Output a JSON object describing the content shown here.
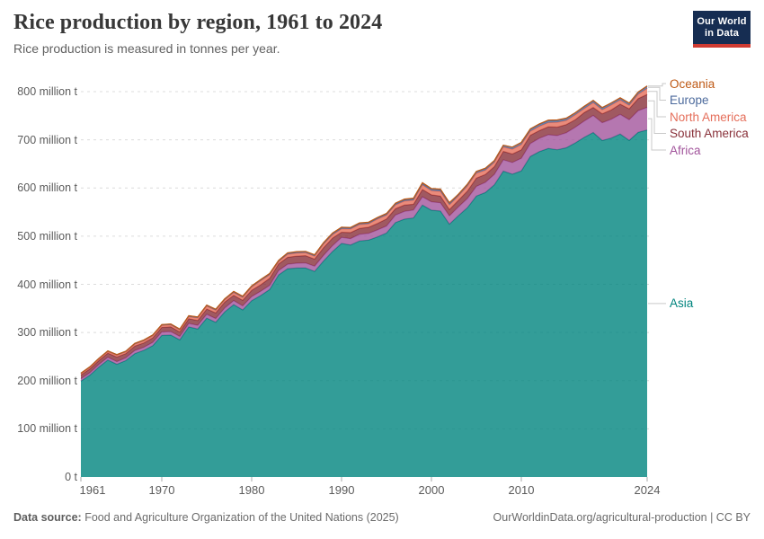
{
  "header": {
    "title": "Rice production by region, 1961 to 2024",
    "subtitle": "Rice production is measured in tonnes per year.",
    "logo": {
      "line1": "Our World",
      "line2": "in Data",
      "navy": "#162d52",
      "red": "#cf3b32"
    }
  },
  "footer": {
    "source_label": "Data source:",
    "source_text": " Food and Agriculture Organization of the United Nations (2025)",
    "link_text": "OurWorldinData.org/agricultural-production | CC BY"
  },
  "colors": {
    "gridline": "#dcdcdc",
    "tick": "#a8a8a8",
    "connector": "#c9c9c9",
    "axis_text": "#5b5b5b",
    "fill_opacity": 0.8
  },
  "chart_data": {
    "type": "area",
    "stacked": true,
    "title": "Rice production by region, 1961 to 2024",
    "unit": "million tonnes per year",
    "xlabel": "",
    "ylabel": "Rice production",
    "ylim": [
      0,
      800
    ],
    "grid": "dashed-horizontal",
    "legend_position": "right-edge-labels",
    "x": [
      1961,
      1962,
      1963,
      1964,
      1965,
      1966,
      1967,
      1968,
      1969,
      1970,
      1971,
      1972,
      1973,
      1974,
      1975,
      1976,
      1977,
      1978,
      1979,
      1980,
      1981,
      1982,
      1983,
      1984,
      1985,
      1986,
      1987,
      1988,
      1989,
      1990,
      1991,
      1992,
      1993,
      1994,
      1995,
      1996,
      1997,
      1998,
      1999,
      2000,
      2001,
      2002,
      2003,
      2004,
      2005,
      2006,
      2007,
      2008,
      2009,
      2010,
      2011,
      2012,
      2013,
      2014,
      2015,
      2016,
      2017,
      2018,
      2019,
      2020,
      2021,
      2022,
      2023,
      2024
    ],
    "series": [
      {
        "name": "Asia",
        "color": "#00847E",
        "values": [
          199.2,
          211.4,
          228.3,
          242.9,
          234.1,
          241.7,
          256.3,
          262.9,
          272.6,
          293.9,
          294.6,
          284.7,
          311.6,
          307.3,
          329.9,
          321.1,
          342.8,
          357.9,
          346.8,
          366.0,
          376.7,
          389.1,
          419.6,
          432.4,
          433.7,
          433.9,
          426.9,
          448.5,
          468.3,
          484.9,
          481.7,
          490.0,
          491.7,
          498.5,
          506.4,
          528.3,
          535.3,
          537.9,
          564.4,
          553.8,
          552.2,
          524.7,
          542.5,
          559.0,
          583.3,
          590.5,
          606.6,
          635.0,
          628.7,
          635.6,
          665.4,
          675.5,
          682.0,
          679.4,
          683.5,
          693.6,
          705.1,
          715.1,
          698.5,
          703.5,
          711.9,
          698.8,
          715.5,
          720.3
        ]
      },
      {
        "name": "Africa",
        "color": "#A2559C",
        "values": [
          4.9,
          5.1,
          5.3,
          5.6,
          5.4,
          5.7,
          6.2,
          6.4,
          6.9,
          7.2,
          7.4,
          7.2,
          7.3,
          7.6,
          7.9,
          7.8,
          8.0,
          8.3,
          8.4,
          8.6,
          8.9,
          8.7,
          9.1,
          9.4,
          10.1,
          10.4,
          10.8,
          11.7,
          12.1,
          12.5,
          13.2,
          13.9,
          14.1,
          14.5,
          14.6,
          15.5,
          16.2,
          16.4,
          17.3,
          17.4,
          17.2,
          17.5,
          18.2,
          19.0,
          19.9,
          21.1,
          21.6,
          23.4,
          24.1,
          26.0,
          26.9,
          27.5,
          28.5,
          29.5,
          31.0,
          32.5,
          34.0,
          35.5,
          37.0,
          39.0,
          41.0,
          43.0,
          45.0,
          47.0
        ]
      },
      {
        "name": "South America",
        "color": "#883039",
        "values": [
          7.5,
          8.0,
          8.2,
          8.6,
          9.6,
          8.8,
          9.4,
          9.2,
          9.5,
          9.6,
          9.8,
          9.2,
          9.6,
          10.1,
          11.0,
          11.8,
          12.2,
          11.1,
          11.6,
          13.1,
          13.5,
          14.7,
          13.6,
          14.3,
          14.8,
          15.2,
          14.7,
          15.9,
          15.6,
          10.7,
          12.6,
          12.2,
          12.7,
          13.5,
          14.6,
          13.3,
          13.1,
          11.8,
          15.2,
          14.5,
          13.8,
          13.2,
          13.7,
          15.5,
          17.4,
          16.4,
          16.0,
          17.5,
          17.8,
          17.5,
          17.0,
          16.0,
          16.5,
          17.5,
          17.0,
          15.5,
          17.5,
          16.5,
          18.5,
          19.5,
          21.0,
          22.5,
          25.0,
          27.0
        ]
      },
      {
        "name": "North America",
        "color": "#E56E5A",
        "values": [
          2.6,
          2.8,
          3.0,
          3.2,
          3.5,
          3.6,
          3.9,
          4.2,
          4.1,
          3.8,
          3.9,
          3.9,
          4.2,
          5.1,
          5.8,
          5.3,
          4.5,
          5.5,
          5.9,
          6.6,
          8.3,
          7.0,
          4.6,
          6.3,
          6.1,
          6.0,
          5.9,
          7.3,
          7.1,
          7.1,
          7.3,
          8.1,
          7.1,
          9.0,
          7.9,
          7.8,
          8.2,
          8.5,
          9.5,
          8.7,
          9.8,
          9.6,
          9.1,
          10.5,
          10.1,
          8.8,
          9.0,
          9.2,
          9.9,
          11.0,
          8.4,
          9.0,
          8.6,
          10.0,
          8.7,
          10.2,
          8.1,
          10.2,
          8.4,
          10.3,
          8.7,
          7.3,
          9.0,
          12.5
        ]
      },
      {
        "name": "Europe",
        "color": "#4C6A9C",
        "values": [
          1.2,
          1.3,
          1.3,
          1.4,
          1.3,
          1.3,
          1.4,
          1.5,
          1.6,
          1.6,
          1.7,
          1.8,
          1.9,
          2.0,
          1.9,
          1.9,
          1.8,
          1.9,
          2.0,
          1.9,
          2.0,
          2.1,
          2.1,
          2.2,
          2.3,
          2.3,
          2.3,
          2.4,
          2.4,
          2.4,
          2.2,
          2.3,
          2.2,
          2.3,
          2.5,
          2.6,
          2.7,
          2.8,
          3.1,
          3.2,
          3.1,
          3.2,
          3.2,
          3.4,
          3.4,
          3.4,
          3.5,
          3.4,
          4.2,
          4.4,
          4.3,
          4.1,
          4.1,
          4.0,
          4.1,
          4.1,
          4.2,
          4.1,
          4.1,
          4.1,
          4.2,
          4.1,
          4.3,
          4.4
        ]
      },
      {
        "name": "Oceania",
        "color": "#BE5915",
        "values": [
          0.2,
          0.2,
          0.2,
          0.2,
          0.2,
          0.2,
          0.2,
          0.3,
          0.3,
          0.3,
          0.3,
          0.3,
          0.3,
          0.3,
          0.4,
          0.4,
          0.6,
          0.5,
          0.7,
          0.7,
          0.7,
          0.9,
          0.7,
          0.9,
          0.9,
          0.7,
          0.8,
          0.9,
          0.9,
          1.0,
          1.1,
          1.1,
          1.2,
          1.1,
          1.2,
          1.0,
          1.4,
          1.4,
          1.4,
          1.1,
          1.8,
          1.3,
          0.4,
          0.6,
          0.3,
          1.0,
          0.2,
          0.1,
          0.1,
          0.2,
          0.7,
          0.9,
          1.2,
          0.8,
          0.7,
          0.3,
          0.8,
          0.6,
          0.5,
          0.1,
          0.5,
          0.7,
          0.5,
          0.8
        ]
      }
    ],
    "yticks": [
      {
        "value": 0,
        "label": "0 t"
      },
      {
        "value": 100,
        "label": "100 million t"
      },
      {
        "value": 200,
        "label": "200 million t"
      },
      {
        "value": 300,
        "label": "300 million t"
      },
      {
        "value": 400,
        "label": "400 million t"
      },
      {
        "value": 500,
        "label": "500 million t"
      },
      {
        "value": 600,
        "label": "600 million t"
      },
      {
        "value": 700,
        "label": "700 million t"
      },
      {
        "value": 800,
        "label": "800 million t"
      }
    ],
    "xticks": [
      {
        "x": 1961,
        "label": "1961"
      },
      {
        "x": 1970,
        "label": "1970"
      },
      {
        "x": 1980,
        "label": "1980"
      },
      {
        "x": 1990,
        "label": "1990"
      },
      {
        "x": 2000,
        "label": "2000"
      },
      {
        "x": 2010,
        "label": "2010"
      },
      {
        "x": 2024,
        "label": "2024"
      }
    ],
    "legend": [
      "Oceania",
      "Europe",
      "North America",
      "South America",
      "Africa",
      "Asia"
    ]
  }
}
